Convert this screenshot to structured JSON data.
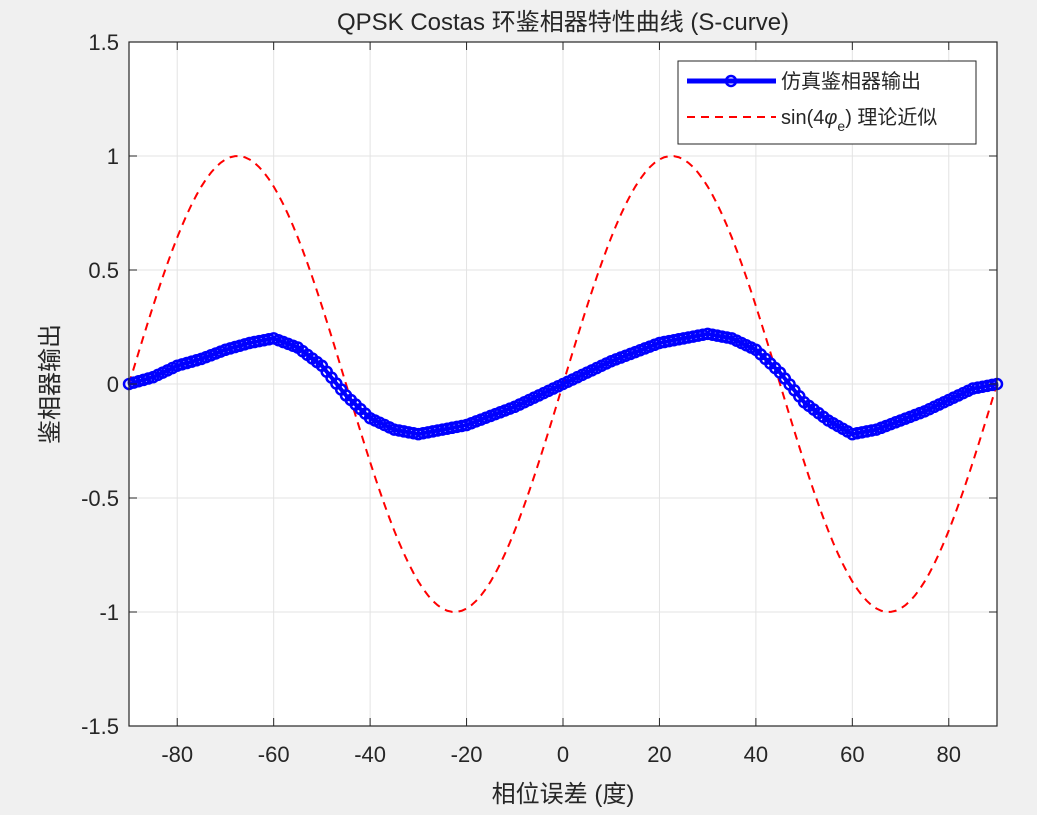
{
  "chart_data": {
    "type": "line",
    "title": "QPSK Costas 环鉴相器特性曲线 (S-curve)",
    "xlabel": "相位误差 (度)",
    "ylabel": "鉴相器输出",
    "xlim": [
      -90,
      90
    ],
    "ylim": [
      -1.5,
      1.5
    ],
    "x_ticks": [
      -80,
      -60,
      -40,
      -20,
      0,
      20,
      40,
      60,
      80
    ],
    "y_ticks": [
      -1.5,
      -1,
      -0.5,
      0,
      0.5,
      1,
      1.5
    ],
    "x_tick_labels": [
      "-80",
      "-60",
      "-40",
      "-20",
      "0",
      "20",
      "40",
      "60",
      "80"
    ],
    "y_tick_labels": [
      "-1.5",
      "-1",
      "-0.5",
      "0",
      "0.5",
      "1",
      "1.5"
    ],
    "grid": true,
    "legend_location": "top-right",
    "series": [
      {
        "name": "仿真鉴相器输出",
        "style": "solid-with-circle-markers",
        "color": "#0000ff",
        "x": [
          -90,
          -85,
          -80,
          -75,
          -70,
          -65,
          -60,
          -55,
          -50,
          -45,
          -40,
          -35,
          -30,
          -25,
          -20,
          -15,
          -10,
          -5,
          0,
          5,
          10,
          15,
          20,
          25,
          30,
          35,
          40,
          45,
          50,
          55,
          60,
          65,
          70,
          75,
          80,
          85,
          90
        ],
        "values": [
          0,
          0.03,
          0.08,
          0.11,
          0.15,
          0.18,
          0.2,
          0.16,
          0.08,
          -0.05,
          -0.15,
          -0.2,
          -0.22,
          -0.2,
          -0.18,
          -0.14,
          -0.1,
          -0.05,
          0,
          0.05,
          0.1,
          0.14,
          0.18,
          0.2,
          0.22,
          0.2,
          0.15,
          0.05,
          -0.08,
          -0.16,
          -0.22,
          -0.2,
          -0.16,
          -0.12,
          -0.07,
          -0.02,
          0
        ]
      },
      {
        "name": "sin(4φe) 理论近似",
        "style": "dashed",
        "color": "#ff0000",
        "function": "sin(4*x*pi/180)",
        "x_range": [
          -90,
          90
        ],
        "num_points": 181
      }
    ],
    "legend": {
      "entry1_label": "仿真鉴相器输出",
      "entry2_prefix": "sin(4",
      "entry2_symbol": "φ",
      "entry2_subscript": "e",
      "entry2_suffix": ") 理论近似"
    }
  }
}
